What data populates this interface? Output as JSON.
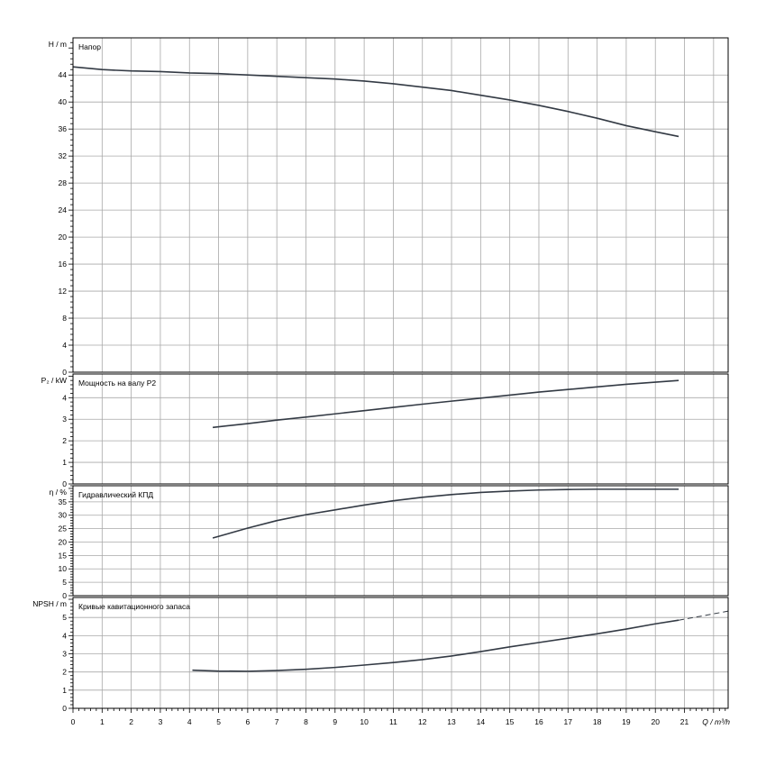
{
  "chart_data": [
    {
      "type": "line",
      "title": "Напор",
      "ylabel": "H / m",
      "xlim": [
        0,
        22.5
      ],
      "ylim": [
        0,
        49.5
      ],
      "y_ticks": [
        0,
        4,
        8,
        12,
        16,
        20,
        24,
        28,
        32,
        36,
        40,
        44
      ],
      "grid": true,
      "series": [
        {
          "x": [
            0,
            1,
            2,
            3,
            4,
            5,
            6,
            7,
            8,
            9,
            10,
            11,
            12,
            13,
            14,
            15,
            16,
            17,
            18,
            19,
            20,
            20.8
          ],
          "y": [
            45.2,
            44.8,
            44.6,
            44.5,
            44.3,
            44.2,
            44.0,
            43.8,
            43.6,
            43.4,
            43.1,
            42.7,
            42.2,
            41.7,
            41.0,
            40.3,
            39.5,
            38.6,
            37.6,
            36.5,
            35.6,
            34.9
          ]
        }
      ]
    },
    {
      "type": "line",
      "title": "Мощность на валу P2",
      "ylabel": "P₂ / kW",
      "xlim": [
        0,
        22.5
      ],
      "ylim": [
        0,
        5.1
      ],
      "y_ticks": [
        0,
        1,
        2,
        3,
        4
      ],
      "grid": true,
      "series": [
        {
          "x": [
            4.8,
            6,
            7,
            8,
            9,
            10,
            11,
            12,
            13,
            14,
            15,
            16,
            17,
            18,
            19,
            20,
            20.8
          ],
          "y": [
            2.62,
            2.8,
            2.96,
            3.1,
            3.25,
            3.4,
            3.55,
            3.7,
            3.84,
            3.98,
            4.12,
            4.26,
            4.38,
            4.5,
            4.62,
            4.72,
            4.8
          ]
        }
      ]
    },
    {
      "type": "line",
      "title": "Гидравлический КПД",
      "ylabel": "η / %",
      "xlim": [
        0,
        22.5
      ],
      "ylim": [
        0,
        41
      ],
      "y_ticks": [
        0,
        5,
        10,
        15,
        20,
        25,
        30,
        35
      ],
      "grid": true,
      "series": [
        {
          "x": [
            4.8,
            6,
            7,
            8,
            9,
            10,
            11,
            12,
            13,
            14,
            15,
            16,
            17,
            18,
            19,
            20,
            20.8
          ],
          "y": [
            21.5,
            25.2,
            28.0,
            30.2,
            32.0,
            33.8,
            35.4,
            36.7,
            37.7,
            38.5,
            39.0,
            39.4,
            39.6,
            39.7,
            39.7,
            39.7,
            39.7
          ]
        }
      ]
    },
    {
      "type": "line",
      "title": "Кривые кавитационного запаса",
      "ylabel": "NPSH / m",
      "xlabel": "Q / m³/h",
      "xlim": [
        0,
        22.5
      ],
      "x_ticks": [
        0,
        1,
        2,
        3,
        4,
        5,
        6,
        7,
        8,
        9,
        10,
        11,
        12,
        13,
        14,
        15,
        16,
        17,
        18,
        19,
        20,
        21
      ],
      "ylim": [
        0,
        6.1
      ],
      "y_ticks": [
        0,
        1,
        2,
        3,
        4,
        5
      ],
      "grid": true,
      "series": [
        {
          "x": [
            4.1,
            5,
            6,
            7,
            8,
            9,
            10,
            11,
            12,
            13,
            14,
            15,
            16,
            17,
            18,
            19,
            20,
            20.8
          ],
          "y": [
            2.1,
            2.05,
            2.04,
            2.08,
            2.15,
            2.25,
            2.38,
            2.52,
            2.68,
            2.88,
            3.12,
            3.38,
            3.62,
            3.86,
            4.1,
            4.36,
            4.65,
            4.85
          ],
          "dashed_extension": {
            "x": [
              20.8,
              21.6,
              22.5
            ],
            "y": [
              4.85,
              5.08,
              5.35
            ]
          }
        }
      ]
    }
  ]
}
